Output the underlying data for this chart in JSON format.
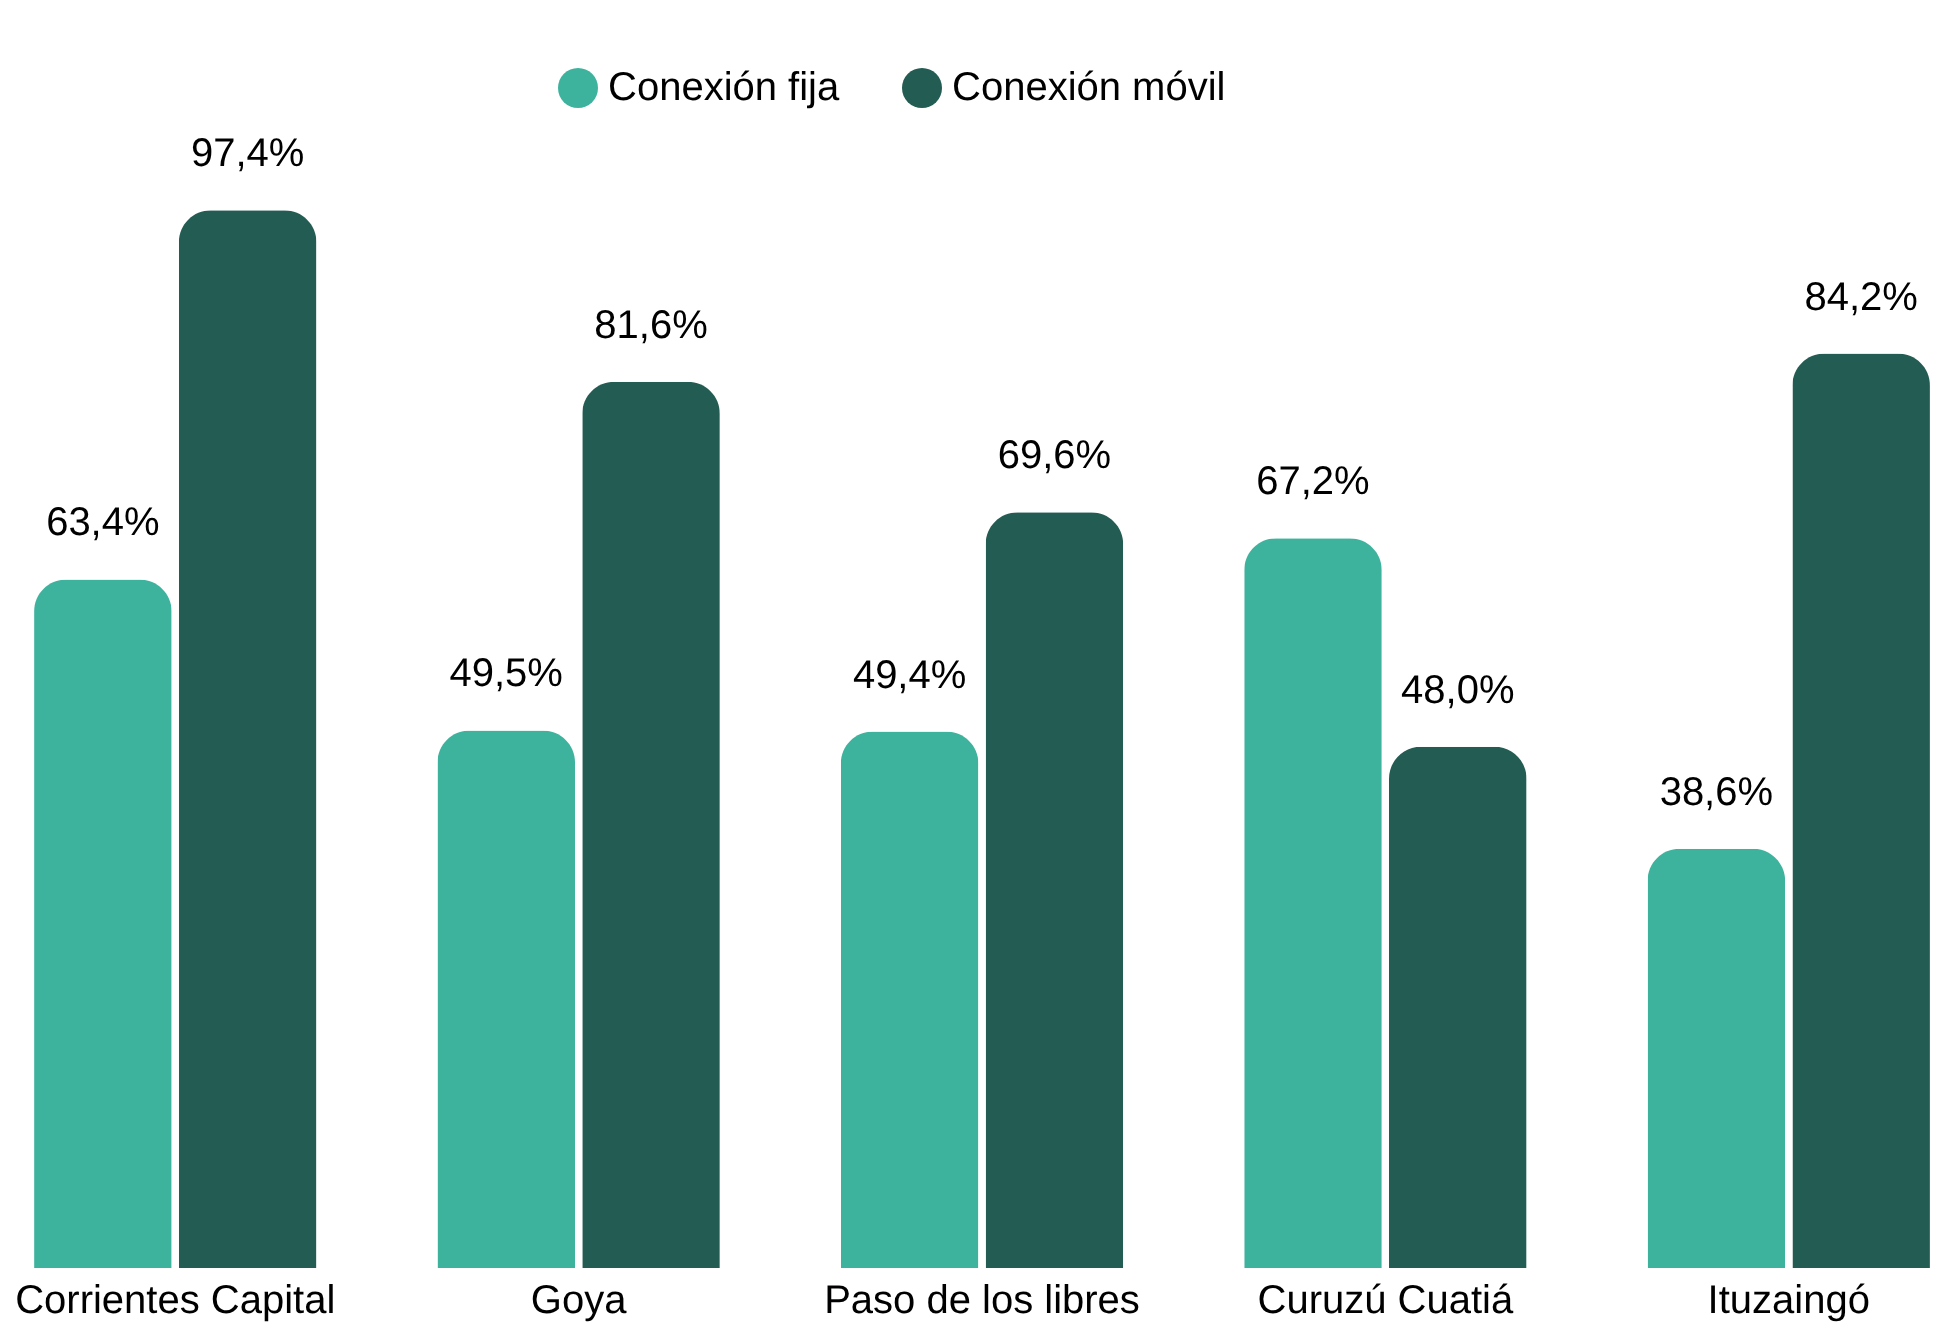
{
  "chart_data": {
    "type": "bar",
    "categories": [
      "Corrientes Capital",
      "Goya",
      "Paso de los libres",
      "Curuzú Cuatiá",
      "Ituzaingó"
    ],
    "series": [
      {
        "name": "Conexión fija",
        "color": "#3db39e",
        "values": [
          63.4,
          49.5,
          49.4,
          67.2,
          38.6
        ],
        "value_labels": [
          "63,4%",
          "49,5%",
          "49,4%",
          "67,2%",
          "38,6%"
        ]
      },
      {
        "name": "Conexión móvil",
        "color": "#225c52",
        "values": [
          97.4,
          81.6,
          69.6,
          48.0,
          84.2
        ],
        "value_labels": [
          "97,4%",
          "81,6%",
          "69,6%",
          "48,0%",
          "84,2%"
        ]
      }
    ],
    "legend": "top",
    "grid": false
  }
}
